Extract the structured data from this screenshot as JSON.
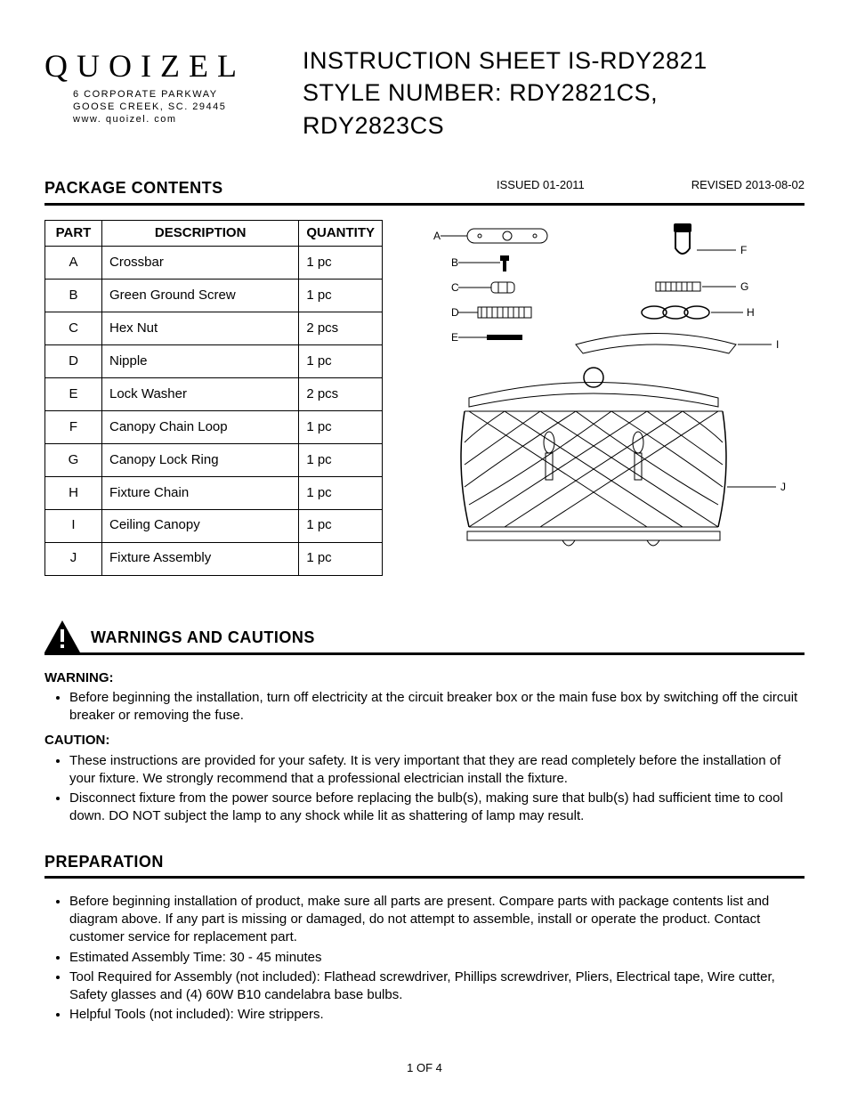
{
  "logo": {
    "brand": "QUOIZEL",
    "addr1": "6 CORPORATE PARKWAY",
    "addr2": "GOOSE CREEK, SC. 29445",
    "url": "www. quoizel. com"
  },
  "title": {
    "line1_label": "INSTRUCTION SHEET",
    "line1_value": "IS-RDY2821",
    "line2_label": "STYLE NUMBER:",
    "line2_value": "RDY2821CS, RDY2823CS"
  },
  "package": {
    "heading": "PACKAGE CONTENTS",
    "issued_label": "ISSUED",
    "issued_value": "01-2011",
    "revised_label": "REVISED",
    "revised_value": "2013-08-02"
  },
  "parts_table": {
    "headers": {
      "part": "PART",
      "desc": "DESCRIPTION",
      "qty": "QUANTITY"
    },
    "rows": [
      {
        "part": "A",
        "desc": "Crossbar",
        "qty": "1 pc"
      },
      {
        "part": "B",
        "desc": "Green Ground Screw",
        "qty": "1 pc"
      },
      {
        "part": "C",
        "desc": "Hex Nut",
        "qty": "2 pcs"
      },
      {
        "part": "D",
        "desc": "Nipple",
        "qty": "1 pc"
      },
      {
        "part": "E",
        "desc": "Lock Washer",
        "qty": "2 pcs"
      },
      {
        "part": "F",
        "desc": "Canopy Chain Loop",
        "qty": "1 pc"
      },
      {
        "part": "G",
        "desc": "Canopy Lock Ring",
        "qty": "1 pc"
      },
      {
        "part": "H",
        "desc": "Fixture Chain",
        "qty": "1 pc"
      },
      {
        "part": "I",
        "desc": "Ceiling Canopy",
        "qty": "1 pc"
      },
      {
        "part": "J",
        "desc": "Fixture Assembly",
        "qty": "1 pc"
      }
    ]
  },
  "diagram": {
    "labels": {
      "A": "A",
      "B": "B",
      "C": "C",
      "D": "D",
      "E": "E",
      "F": "F",
      "G": "G",
      "H": "H",
      "I": "I",
      "J": "J"
    }
  },
  "warnings": {
    "heading": "WARNINGS AND CAUTIONS",
    "warning_label": "WARNING:",
    "warning_items": [
      "Before beginning the installation, turn off electricity at the circuit breaker box or the main fuse box by switching off the circuit breaker or removing the fuse."
    ],
    "caution_label": "CAUTION:",
    "caution_items": [
      "These instructions are provided for your safety. It is very important that they are read completely before the installation of your fixture. We strongly recommend that a professional electrician install the fixture.",
      "Disconnect fixture from the power source before replacing the bulb(s), making sure that bulb(s) had sufficient time to cool down. DO NOT subject the lamp to any shock while lit as shattering of lamp may result."
    ]
  },
  "preparation": {
    "heading": "PREPARATION",
    "items": [
      "Before beginning installation of product, make sure all parts are present. Compare parts with package contents list and diagram above. If any part is missing or damaged, do not attempt to assemble, install or operate the product. Contact customer service for replacement part.",
      "Estimated Assembly Time: 30 - 45 minutes",
      "Tool Required for Assembly (not included): Flathead screwdriver, Phillips screwdriver, Pliers, Electrical tape, Wire cutter, Safety glasses and (4) 60W B10 candelabra base bulbs.",
      "Helpful Tools (not included): Wire strippers."
    ]
  },
  "page_number": "1 OF 4",
  "colors": {
    "text": "#000000",
    "background": "#ffffff",
    "rule": "#000000"
  }
}
